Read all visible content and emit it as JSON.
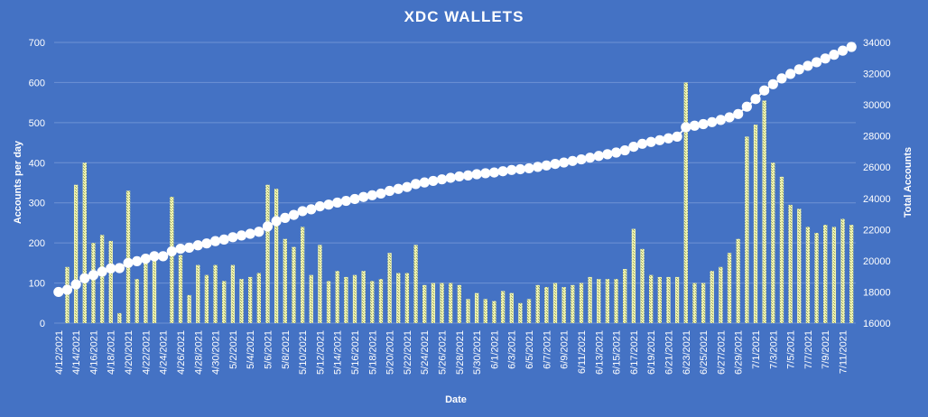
{
  "chart_data": {
    "type": "bar",
    "title": "XDC WALLETS",
    "xlabel": "Date",
    "ylabel": "Accounts per day",
    "y2label": "Total Accounts",
    "ylim": [
      0,
      700
    ],
    "y2lim": [
      16000,
      34000
    ],
    "yticks": [
      0,
      100,
      200,
      300,
      400,
      500,
      600,
      700
    ],
    "y2ticks": [
      16000,
      18000,
      20000,
      22000,
      24000,
      26000,
      28000,
      30000,
      32000,
      34000
    ],
    "grid": true,
    "x_tick_labels": [
      "4/12/2021",
      "4/14/2021",
      "4/16/2021",
      "4/18/2021",
      "4/20/2021",
      "4/22/2021",
      "4/24/2021",
      "4/26/2021",
      "4/28/2021",
      "4/30/2021",
      "5/2/2021",
      "5/4/2021",
      "5/6/2021",
      "5/8/2021",
      "5/10/2021",
      "5/12/2021",
      "5/14/2021",
      "5/16/2021",
      "5/18/2021",
      "5/20/2021",
      "5/22/2021",
      "5/24/2021",
      "5/26/2021",
      "5/28/2021",
      "5/30/2021",
      "6/1/2021",
      "6/3/2021",
      "6/5/2021",
      "6/7/2021",
      "6/9/2021",
      "6/11/2021",
      "6/13/2021",
      "6/15/2021",
      "6/17/2021",
      "6/19/2021",
      "6/21/2021",
      "6/23/2021",
      "6/25/2021",
      "6/27/2021",
      "6/29/2021",
      "7/1/2021",
      "7/3/2021",
      "7/5/2021",
      "7/7/2021",
      "7/9/2021",
      "7/11/2021"
    ],
    "series": [
      {
        "name": "Accounts per day",
        "type": "bar",
        "axis": "left",
        "values": [
          0,
          140,
          345,
          400,
          200,
          220,
          205,
          25,
          330,
          110,
          160,
          160,
          0,
          315,
          170,
          70,
          145,
          120,
          145,
          105,
          145,
          110,
          115,
          125,
          345,
          335,
          210,
          190,
          240,
          120,
          195,
          105,
          130,
          115,
          120,
          130,
          105,
          110,
          175,
          125,
          125,
          195,
          95,
          100,
          100,
          100,
          95,
          60,
          75,
          60,
          55,
          80,
          75,
          50,
          60,
          95,
          90,
          100,
          90,
          95,
          100,
          115,
          110,
          110,
          110,
          135,
          235,
          185,
          120,
          115,
          115,
          115,
          600,
          100,
          100,
          130,
          140,
          175,
          210,
          465,
          495,
          555,
          400,
          365,
          295,
          285,
          240,
          225,
          245,
          240,
          260,
          245
        ]
      },
      {
        "name": "Total Accounts",
        "type": "line",
        "axis": "right",
        "values": [
          18000,
          18140,
          18480,
          18880,
          19080,
          19300,
          19510,
          19530,
          19860,
          19970,
          20130,
          20290,
          20290,
          20600,
          20770,
          20840,
          20990,
          21110,
          21260,
          21360,
          21510,
          21620,
          21730,
          21860,
          22200,
          22540,
          22750,
          22940,
          23180,
          23300,
          23490,
          23600,
          23730,
          23840,
          23960,
          24090,
          24200,
          24310,
          24480,
          24610,
          24730,
          24920,
          25020,
          25120,
          25220,
          25320,
          25410,
          25470,
          25550,
          25610,
          25660,
          25740,
          25820,
          25870,
          25930,
          26020,
          26110,
          26210,
          26300,
          26400,
          26500,
          26610,
          26720,
          26830,
          26940,
          27080,
          27310,
          27500,
          27620,
          27730,
          27850,
          27960,
          28560,
          28660,
          28760,
          28890,
          29030,
          29200,
          29410,
          29880,
          30370,
          30920,
          31320,
          31690,
          31980,
          32270,
          32500,
          32730,
          32970,
          33210,
          33470,
          33710
        ]
      }
    ]
  }
}
